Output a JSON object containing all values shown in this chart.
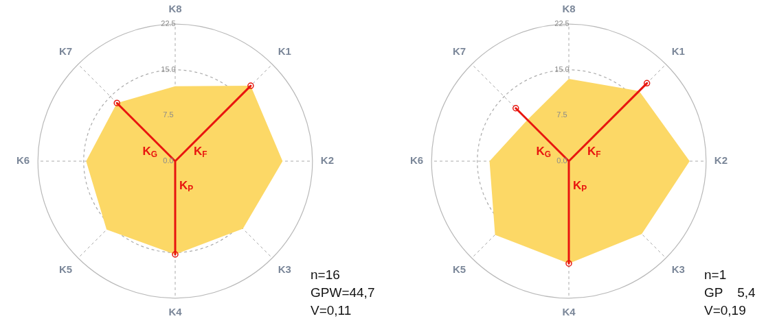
{
  "chart_data": [
    {
      "type": "radar",
      "categories": [
        "K8",
        "K1",
        "K2",
        "K3",
        "K4",
        "K5",
        "K6",
        "K7"
      ],
      "ylim": [
        0,
        22.5
      ],
      "yticks": [
        {
          "value": 0,
          "label": "0.0"
        },
        {
          "value": 7.5,
          "label": "7.5"
        },
        {
          "value": 15,
          "label": "15.0"
        },
        {
          "value": 22.5,
          "label": "22.5"
        }
      ],
      "grid": true,
      "legend": false,
      "series": [
        {
          "type": "area",
          "color": "#fcd866",
          "values": [
            12.3,
            17.5,
            17.6,
            15.7,
            15.3,
            15.9,
            14.6,
            13.5
          ]
        },
        {
          "type": "radar",
          "marker": "circle",
          "color": "#e8150f",
          "values": [
            0,
            17.5,
            0,
            0,
            15.3,
            0,
            0,
            13.5
          ]
        }
      ],
      "annotations": [
        "K$_{F}$",
        "K$_{P}$",
        "K$_{G}$",
        "n=16",
        "GPW=44,7",
        "V=0,11"
      ]
    },
    {
      "type": "radar",
      "categories": [
        "K8",
        "K1",
        "K2",
        "K3",
        "K4",
        "K5",
        "K6",
        "K7"
      ],
      "ylim": [
        0,
        22.5
      ],
      "yticks": [
        {
          "value": 0,
          "label": "0.0"
        },
        {
          "value": 7.5,
          "label": "7.5"
        },
        {
          "value": 15,
          "label": "15.0"
        },
        {
          "value": 22.5,
          "label": "22.5"
        }
      ],
      "grid": true,
      "legend": false,
      "series": [
        {
          "type": "area",
          "color": "#fcd866",
          "values": [
            13.5,
            16.3,
            19.8,
            16.9,
            16.8,
            17.1,
            13.0,
            9.6
          ]
        },
        {
          "type": "radar",
          "marker": "circle",
          "color": "#e8150f",
          "values": [
            0,
            18.1,
            0,
            0,
            16.8,
            0,
            0,
            12.3
          ]
        }
      ],
      "annotations": [
        "K$_{F}$",
        "K$_{P}$",
        "K$_{G}$",
        "n=1",
        "GP    5,4",
        "V=0,19"
      ]
    }
  ]
}
